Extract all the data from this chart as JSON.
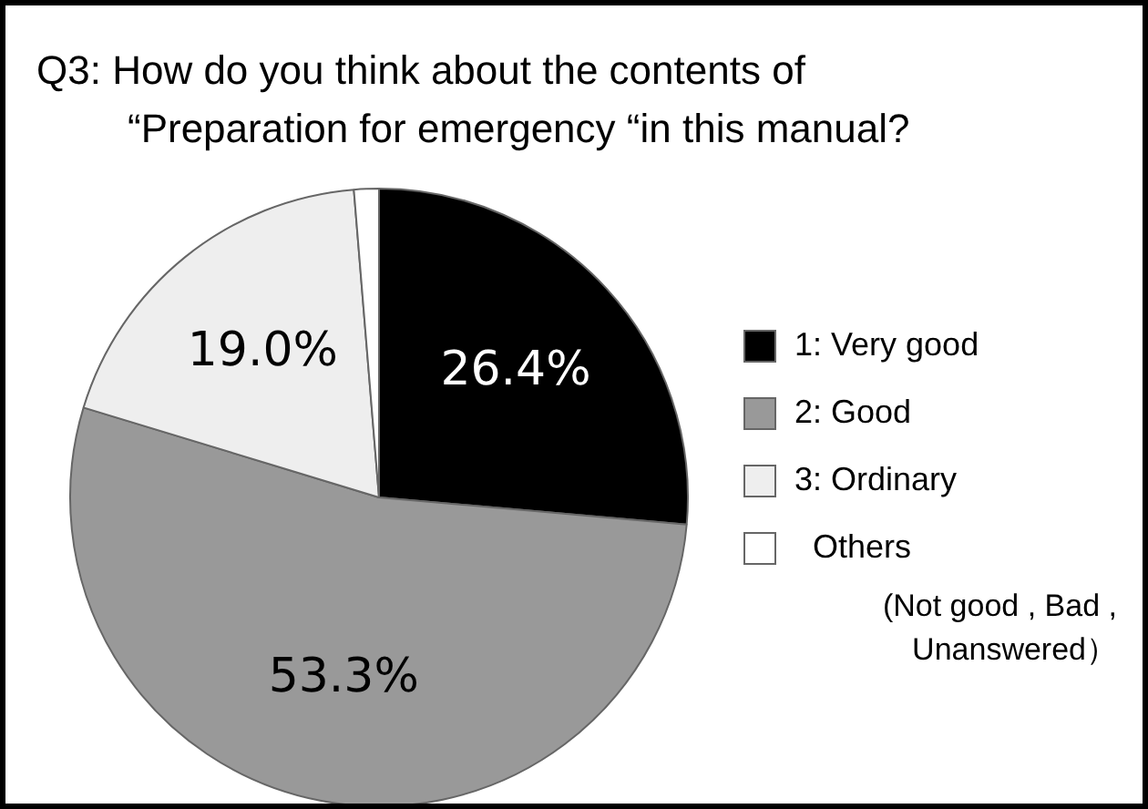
{
  "chart_data": {
    "type": "pie",
    "title": "Q3: How do you think about the contents of\n“Preparation for emergency “in this manual?",
    "categories": [
      "1: Very good",
      "2: Good",
      "3: Ordinary",
      "Others"
    ],
    "values": [
      26.4,
      53.3,
      19.0,
      1.3
    ],
    "colors": [
      "#000000",
      "#999999",
      "#eeeeee",
      "#ffffff"
    ],
    "value_labels": [
      "26.4%",
      "53.3%",
      "19.0%",
      null
    ],
    "legend": "right",
    "annotations": [
      "(Not good , Bad , Unanswered）"
    ]
  }
}
